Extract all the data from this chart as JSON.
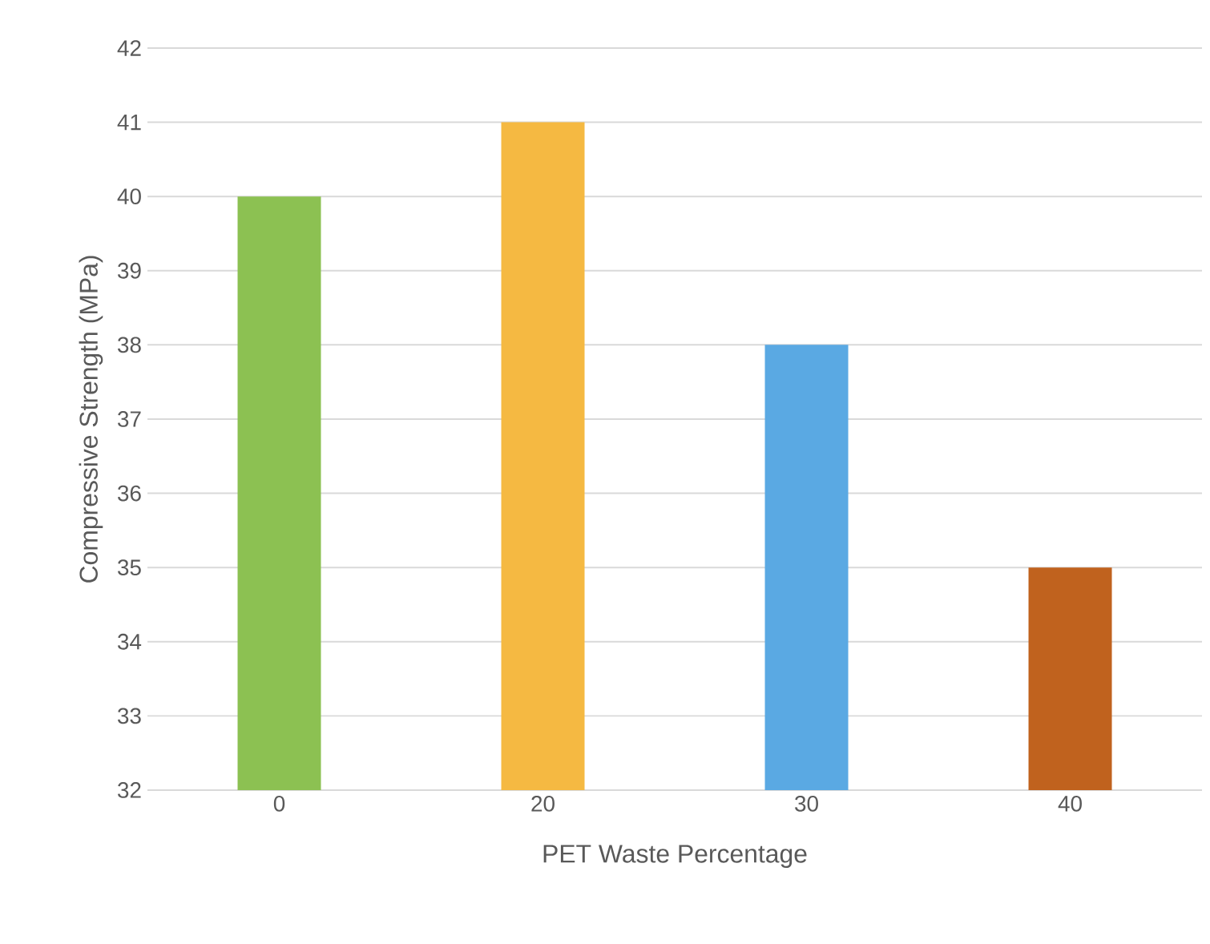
{
  "chart_data": {
    "type": "bar",
    "xlabel": "PET Waste Percentage",
    "ylabel": "Compressive Strength (MPa)",
    "categories": [
      "0",
      "20",
      "30",
      "40"
    ],
    "values": [
      40,
      41,
      38,
      35
    ],
    "colors": [
      "#8cc152",
      "#f5b942",
      "#5aa9e3",
      "#c0621e"
    ],
    "ylim": [
      32,
      42
    ],
    "yticks": [
      32,
      33,
      34,
      35,
      36,
      37,
      38,
      39,
      40,
      41,
      42
    ],
    "grid": "y"
  }
}
